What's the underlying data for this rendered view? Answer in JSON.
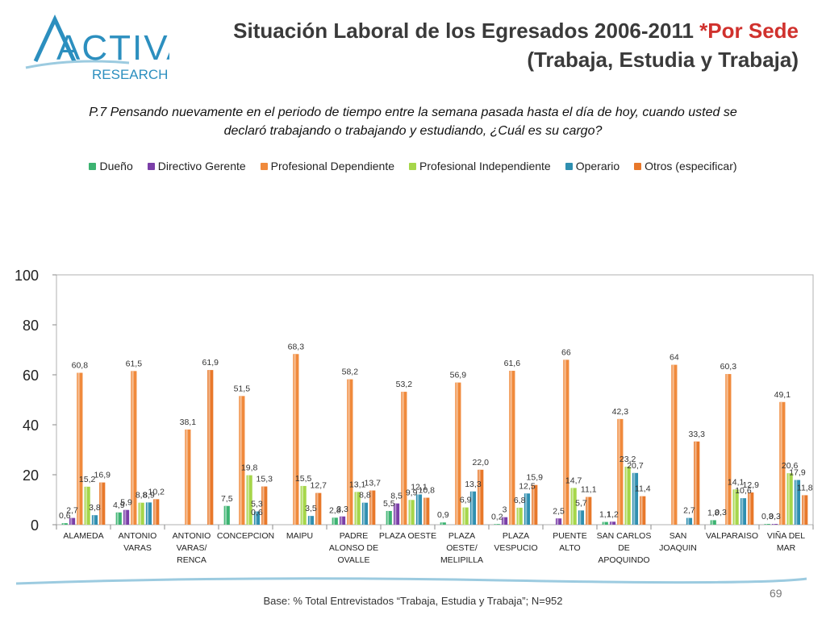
{
  "header": {
    "title_main": "Situación Laboral de los Egresados 2006-2011 ",
    "title_accent": "*Por Sede",
    "title_line2": "(Trabaja, Estudia y Trabaja)",
    "logo_text": "ACTIVA",
    "logo_subtext": "RESEARCH"
  },
  "question": {
    "line1": "P.7 Pensando nuevamente en el periodo de tiempo entre la semana pasada hasta el día de hoy, cuando usted se",
    "line2": "declaró trabajando o trabajando y estudiando, ¿Cuál es su cargo?"
  },
  "footer": {
    "base": "Base: % Total Entrevistados “Trabaja, Estudia y Trabaja”; N=952",
    "page": "69"
  },
  "colors": {
    "Dueño": "#3cb371",
    "Directivo Gerente": "#7b3fa8",
    "Profesional Dependiente": "#f08a3c",
    "Profesional Independiente": "#a6d64a",
    "Operario": "#2f8fb0",
    "Otros (especificar)": "#e8782a",
    "logo": "#2c8fbf",
    "title_accent": "#d0312d"
  },
  "chart_data": {
    "type": "bar",
    "ylim": [
      0,
      100
    ],
    "yticks": [
      0,
      20,
      40,
      60,
      80,
      100
    ],
    "categories": [
      [
        "ALAMEDA"
      ],
      [
        "ANTONIO",
        "VARAS"
      ],
      [
        "ANTONIO",
        "VARAS/",
        "RENCA"
      ],
      [
        "CONCEPCION"
      ],
      [
        "MAIPU"
      ],
      [
        "PADRE",
        "ALONSO DE",
        "OVALLE"
      ],
      [
        "PLAZA OESTE"
      ],
      [
        "PLAZA",
        "OESTE/",
        "MELIPILLA"
      ],
      [
        "PLAZA",
        "VESPUCIO"
      ],
      [
        "PUENTE",
        "ALTO"
      ],
      [
        "SAN CARLOS",
        "DE",
        "APOQUINDO"
      ],
      [
        "SAN",
        "JOAQUIN"
      ],
      [
        "VALPARAISO"
      ],
      [
        "VIÑA DEL",
        "MAR"
      ]
    ],
    "series": [
      {
        "name": "Dueño",
        "values": [
          0.6,
          4.9,
          null,
          7.5,
          null,
          2.8,
          5.5,
          0.9,
          0.2,
          null,
          1.1,
          null,
          1.8,
          0.3
        ]
      },
      {
        "name": "Directivo Gerente",
        "values": [
          2.7,
          5.9,
          null,
          null,
          null,
          3.3,
          8.5,
          null,
          3,
          2.5,
          1.2,
          null,
          null,
          0.3
        ]
      },
      {
        "name": "Profesional Dependiente",
        "values": [
          60.8,
          61.5,
          38.1,
          51.5,
          68.3,
          58.2,
          53.2,
          56.9,
          61.6,
          66,
          42.3,
          64,
          60.3,
          49.1
        ]
      },
      {
        "name": "Profesional Independiente",
        "values": [
          15.2,
          8.8,
          null,
          19.8,
          15.5,
          13.1,
          9.9,
          6.9,
          6.8,
          14.7,
          23.2,
          null,
          14.1,
          20.6
        ]
      },
      {
        "name": "Operario",
        "values": [
          3.8,
          8.9,
          null,
          5.3,
          3.5,
          8.8,
          12.1,
          13.3,
          12.5,
          5.7,
          20.7,
          2.7,
          10.6,
          17.9
        ]
      },
      {
        "name": "Otros (especificar)",
        "values": [
          16.9,
          10.2,
          61.9,
          15.3,
          12.7,
          13.7,
          10.8,
          22.0,
          15.9,
          11.1,
          11.4,
          33.3,
          12.9,
          11.8
        ]
      }
    ],
    "value_labels": [
      [
        "0,6",
        "4,9",
        "",
        "7,5",
        "",
        "2,8",
        "5,5",
        "0,9",
        "0,2",
        "",
        "1,1",
        "",
        "1,8",
        "0,3"
      ],
      [
        "2,7",
        "5,9",
        "",
        "",
        "",
        "3,3",
        "8,5",
        "",
        "3",
        "2,5",
        "1,2",
        "",
        "",
        "0,3"
      ],
      [
        "60,8",
        "61,5",
        "38,1",
        "51,5",
        "68,3",
        "58,2",
        "53,2",
        "56,9",
        "61,6",
        "66",
        "42,3",
        "64",
        "60,3",
        "49,1"
      ],
      [
        "15,2",
        "8,8",
        "",
        "19,8",
        "15,5",
        "13,1",
        "9,9",
        "6,9",
        "6,8",
        "14,7",
        "23,2",
        "",
        "14,1",
        "20,6"
      ],
      [
        "3,8",
        "8,9",
        "",
        "5,3",
        "3,5",
        "8,8",
        "12,1",
        "13,3",
        "12,5",
        "5,7",
        "20,7",
        "2,7",
        "10,6",
        "17,9"
      ],
      [
        "16,9",
        "10,2",
        "61,9",
        "15,3",
        "12,7",
        "13,7",
        "10,8",
        "22,0",
        "15,9",
        "11,1",
        "11,4",
        "33,3",
        "12,9",
        "11,8"
      ]
    ],
    "extra_labels": [
      {
        "category": 3,
        "series": 4,
        "text": "0,6"
      },
      {
        "category": 12,
        "series": 1,
        "text": "0,3"
      }
    ],
    "legend_position": "top",
    "grid": false
  }
}
